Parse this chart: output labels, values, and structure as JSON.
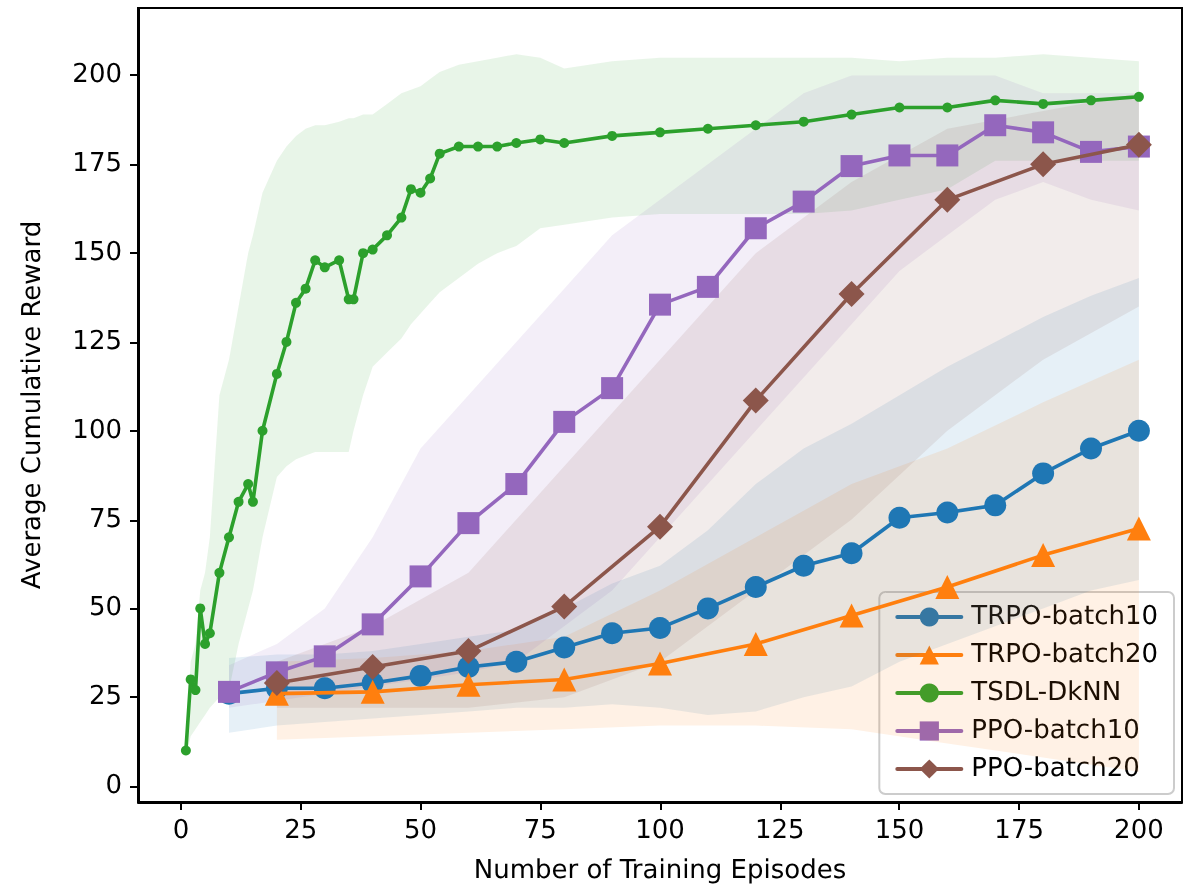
{
  "chart_data": {
    "type": "line",
    "xlabel": "Number of Training Episodes",
    "ylabel": "Average Cumulative Reward",
    "xlim": [
      -9,
      209
    ],
    "ylim": [
      -4.5,
      219
    ],
    "xticks": [
      0,
      25,
      50,
      75,
      100,
      125,
      150,
      175,
      200
    ],
    "yticks": [
      0,
      25,
      50,
      75,
      100,
      125,
      150,
      175,
      200
    ],
    "grid": false,
    "legend": "bottom right",
    "series": [
      {
        "name": "TRPO-batch10",
        "color": "#1f77b4",
        "marker": "circle",
        "x": [
          10,
          20,
          30,
          40,
          50,
          60,
          70,
          80,
          90,
          100,
          110,
          120,
          130,
          140,
          150,
          160,
          170,
          180,
          190,
          200
        ],
        "values": [
          26,
          27.5,
          27.5,
          29,
          31,
          33.5,
          35,
          39,
          43,
          44.5,
          50,
          56,
          62,
          65.5,
          75.5,
          77,
          79,
          88,
          95,
          100
        ],
        "upper": [
          36,
          37,
          37,
          38,
          40,
          42,
          44,
          50,
          57,
          62,
          72,
          85,
          95,
          102,
          110,
          118,
          125,
          132,
          138,
          143
        ],
        "lower": [
          15,
          17,
          18,
          19,
          20,
          21,
          22,
          22,
          23,
          22,
          20,
          21,
          25,
          28,
          35,
          40,
          45,
          50,
          55,
          58
        ]
      },
      {
        "name": "TRPO-batch20",
        "color": "#ff7f0e",
        "marker": "triangle",
        "x": [
          20,
          40,
          60,
          80,
          100,
          120,
          140,
          160,
          180,
          200
        ],
        "values": [
          26,
          26.5,
          28.5,
          30,
          34.5,
          40,
          48,
          56,
          65,
          72.5
        ],
        "upper": [
          35,
          36,
          38,
          42,
          55,
          70,
          85,
          95,
          108,
          120
        ],
        "lower": [
          13,
          14,
          15,
          16,
          17,
          17,
          16,
          12,
          8,
          4
        ]
      },
      {
        "name": "TSDL-DkNN",
        "color": "#2ca02c",
        "marker": "circle",
        "x": [
          1,
          2,
          3,
          4,
          5,
          6,
          8,
          10,
          12,
          14,
          15,
          17,
          20,
          22,
          24,
          26,
          28,
          30,
          33,
          35,
          36,
          38,
          40,
          43,
          46,
          48,
          50,
          52,
          54,
          58,
          62,
          66,
          70,
          75,
          80,
          90,
          100,
          110,
          120,
          130,
          140,
          150,
          160,
          170,
          180,
          190,
          200
        ],
        "values": [
          10,
          30,
          27,
          50,
          40,
          43,
          60,
          70,
          80,
          85,
          80,
          100,
          116,
          125,
          136,
          140,
          148,
          146,
          148,
          137,
          137,
          150,
          151,
          155,
          160,
          168,
          167,
          171,
          178,
          180,
          180,
          180,
          181,
          182,
          181,
          183,
          184,
          185,
          186,
          187,
          189,
          191,
          191,
          193,
          192,
          193,
          194
        ],
        "upper": [
          12,
          35,
          40,
          55,
          60,
          70,
          110,
          120,
          135,
          150,
          155,
          167,
          176,
          180,
          183,
          185,
          186,
          186,
          187,
          188,
          188,
          189,
          189,
          192,
          195,
          196,
          197,
          199,
          201,
          203,
          204,
          205,
          206,
          205,
          202,
          204,
          205,
          205,
          205,
          205,
          205,
          204,
          205,
          205,
          206,
          205,
          204
        ],
        "lower": [
          8,
          14,
          16,
          18,
          20,
          22,
          25,
          27,
          40,
          50,
          55,
          70,
          87,
          90,
          92,
          93,
          94,
          94,
          94,
          94,
          100,
          110,
          118,
          122,
          126,
          130,
          133,
          136,
          139,
          143,
          147,
          150,
          152,
          157,
          158,
          160,
          161,
          161,
          161,
          161,
          162,
          165,
          168,
          176,
          176,
          176,
          176
        ]
      },
      {
        "name": "PPO-batch10",
        "color": "#9467bd",
        "marker": "square",
        "x": [
          10,
          20,
          30,
          40,
          50,
          60,
          70,
          80,
          90,
          100,
          110,
          120,
          130,
          140,
          150,
          160,
          170,
          180,
          190,
          200
        ],
        "values": [
          26.5,
          32,
          36.5,
          45.5,
          59,
          74,
          85,
          102.5,
          112,
          135.5,
          140.5,
          157,
          164.5,
          174.5,
          177.5,
          177.5,
          186,
          184,
          178.5,
          180
        ],
        "upper": [
          34,
          40,
          50,
          70,
          95,
          110,
          125,
          140,
          155,
          165,
          175,
          185,
          195,
          200,
          200,
          200,
          200,
          195,
          195,
          195
        ],
        "lower": [
          22,
          24,
          26,
          28,
          30,
          32,
          35,
          45,
          55,
          70,
          85,
          100,
          115,
          130,
          145,
          155,
          165,
          170,
          165,
          162
        ]
      },
      {
        "name": "PPO-batch20",
        "color": "#8c564b",
        "marker": "diamond",
        "x": [
          20,
          40,
          60,
          80,
          100,
          120,
          140,
          160,
          180,
          200
        ],
        "values": [
          29,
          33.5,
          38,
          50.5,
          73,
          108.5,
          138.5,
          165,
          175,
          180.5
        ],
        "upper": [
          35,
          45,
          60,
          90,
          120,
          150,
          170,
          185,
          190,
          195
        ],
        "lower": [
          22,
          22,
          22,
          25,
          35,
          55,
          75,
          100,
          120,
          135
        ]
      }
    ]
  }
}
